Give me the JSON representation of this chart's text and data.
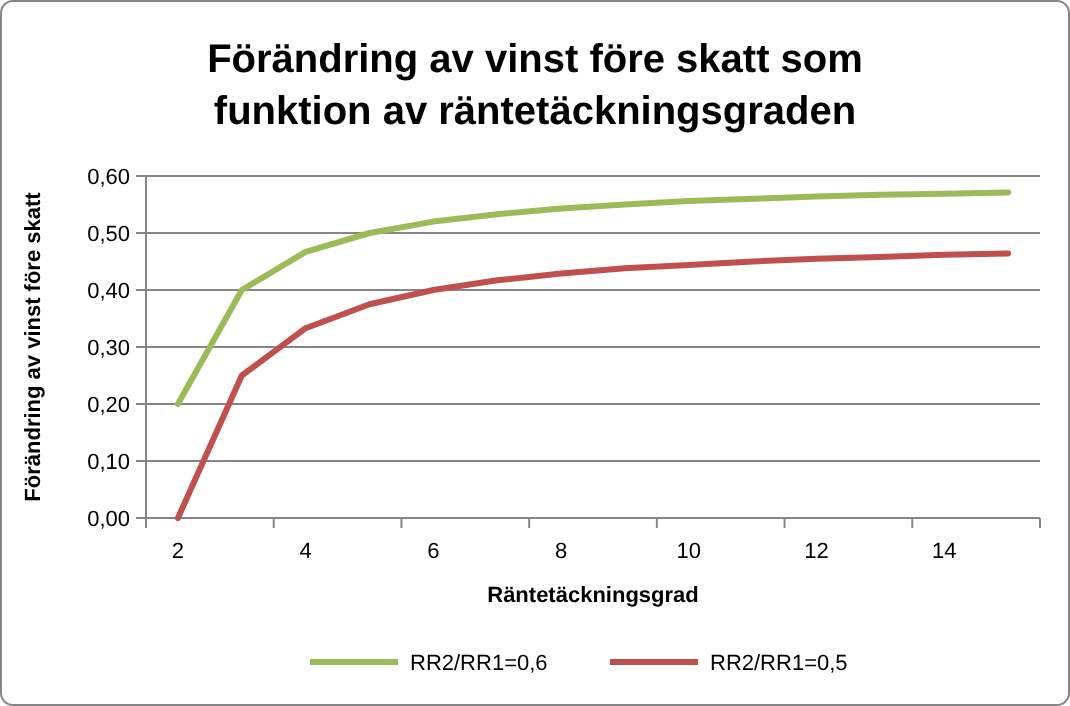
{
  "chart_data": {
    "type": "line",
    "title": "Förändring av vinst före skatt som funktion av räntetäckningsgraden",
    "xlabel": "Räntetäckningsgrad",
    "ylabel": "Förändring av vinst före skatt",
    "categories": [
      "2",
      null,
      "4",
      null,
      "6",
      null,
      "8",
      null,
      "10",
      null,
      "12",
      null,
      "14",
      null
    ],
    "series": [
      {
        "name": "RR2/RR1=0,6",
        "color": "#9bbb59",
        "values": [
          0.2,
          0.4,
          0.467,
          0.5,
          0.52,
          0.533,
          0.543,
          0.55,
          0.556,
          0.56,
          0.564,
          0.567,
          0.569,
          0.571
        ]
      },
      {
        "name": "RR2/RR1=0,5",
        "color": "#c0504d",
        "values": [
          0,
          0.25,
          0.333,
          0.375,
          0.4,
          0.417,
          0.429,
          0.438,
          0.444,
          0.45,
          0.455,
          0.458,
          0.462,
          0.464
        ]
      }
    ],
    "ylim": [
      0,
      0.6
    ],
    "yticks": [
      {
        "value": 0,
        "label": "0,00"
      },
      {
        "value": 0.1,
        "label": "0,10"
      },
      {
        "value": 0.2,
        "label": "0,20"
      },
      {
        "value": 0.3,
        "label": "0,30"
      },
      {
        "value": 0.4,
        "label": "0,40"
      },
      {
        "value": 0.5,
        "label": "0,50"
      },
      {
        "value": 0.6,
        "label": "0,60"
      }
    ],
    "grid": "y",
    "legend": "bottom",
    "marker": "none",
    "line_style": "solid"
  }
}
